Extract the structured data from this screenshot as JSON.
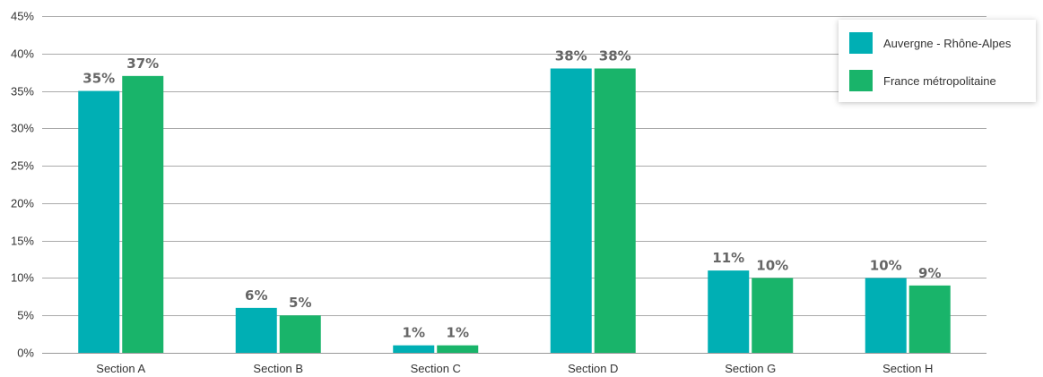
{
  "chart_data": {
    "type": "bar",
    "categories": [
      "Section A",
      "Section B",
      "Section C",
      "Section D",
      "Section G",
      "Section H"
    ],
    "series": [
      {
        "name": "Auvergne - Rhône-Alpes",
        "color": "#00AFB4",
        "values": [
          35,
          6,
          1,
          38,
          11,
          10
        ],
        "labels": [
          "35%",
          "6%",
          "1%",
          "38%",
          "11%",
          "10%"
        ]
      },
      {
        "name": "France métropolitaine",
        "color": "#19B46A",
        "values": [
          37,
          5,
          1,
          38,
          10,
          9
        ],
        "labels": [
          "37%",
          "5%",
          "1%",
          "38%",
          "10%",
          "9%"
        ]
      }
    ],
    "yticks": [
      "0%",
      "5%",
      "10%",
      "15%",
      "20%",
      "25%",
      "30%",
      "35%",
      "40%",
      "45%"
    ],
    "ylim": [
      0,
      45
    ],
    "grid": true,
    "legend_position": "top-right",
    "title": "",
    "xlabel": "",
    "ylabel": ""
  }
}
